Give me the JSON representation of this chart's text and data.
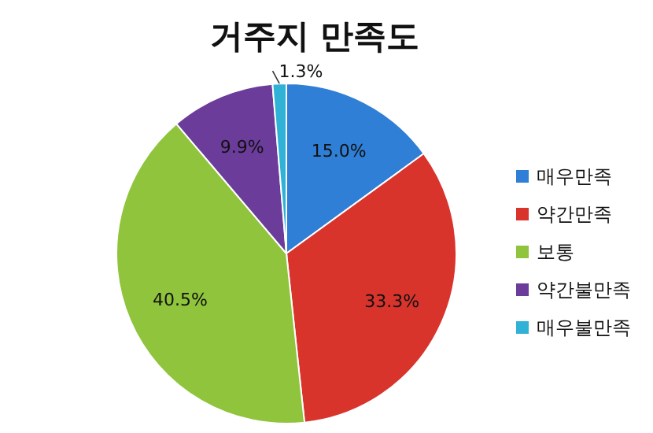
{
  "chart_data": {
    "type": "pie",
    "title": "거주지 만족도",
    "categories": [
      "매우만족",
      "약간만족",
      "보통",
      "약간불만족",
      "매우불만족"
    ],
    "values": [
      15.0,
      33.3,
      40.5,
      9.9,
      1.3
    ],
    "colors": [
      "#2f7fd6",
      "#d8342c",
      "#8fc43c",
      "#6b3c9a",
      "#2fb2d6"
    ],
    "value_labels": [
      "15.0%",
      "33.3%",
      "40.5%",
      "9.9%",
      "1.3%"
    ],
    "legend": "right"
  }
}
